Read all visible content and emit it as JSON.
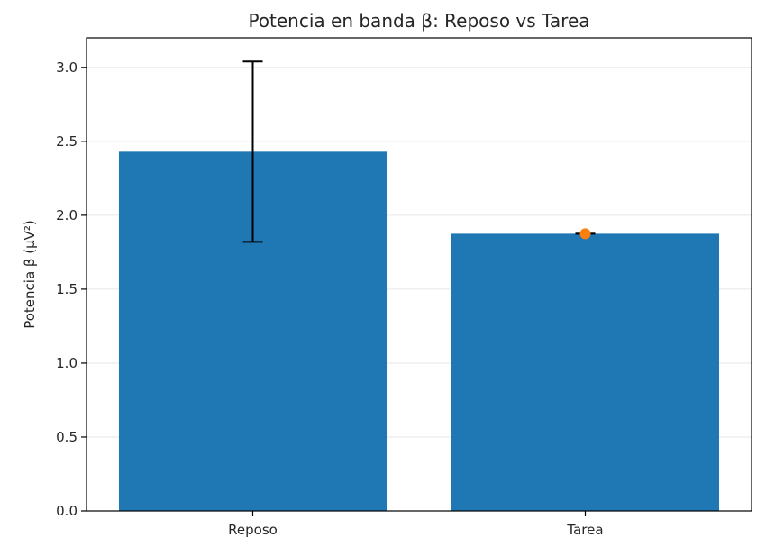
{
  "chart_data": {
    "type": "bar",
    "title": "Potencia en banda β: Reposo vs Tarea",
    "xlabel": "",
    "ylabel": "Potencia β (µV²)",
    "categories": [
      "Reposo",
      "Tarea"
    ],
    "values": [
      2.43,
      1.875
    ],
    "error": [
      0.61,
      0.0
    ],
    "individual_points": [
      {
        "category": "Tarea",
        "value": 1.875
      }
    ],
    "ylim": [
      0,
      3.2
    ],
    "yticks": [
      0.0,
      0.5,
      1.0,
      1.5,
      2.0,
      2.5,
      3.0
    ],
    "ytick_labels": [
      "0.0",
      "0.5",
      "1.0",
      "1.5",
      "2.0",
      "2.5",
      "3.0"
    ],
    "grid": true,
    "colors": {
      "bar": "#1f77b4",
      "point": "#ff7f0e",
      "errorbar": "#000000"
    }
  }
}
